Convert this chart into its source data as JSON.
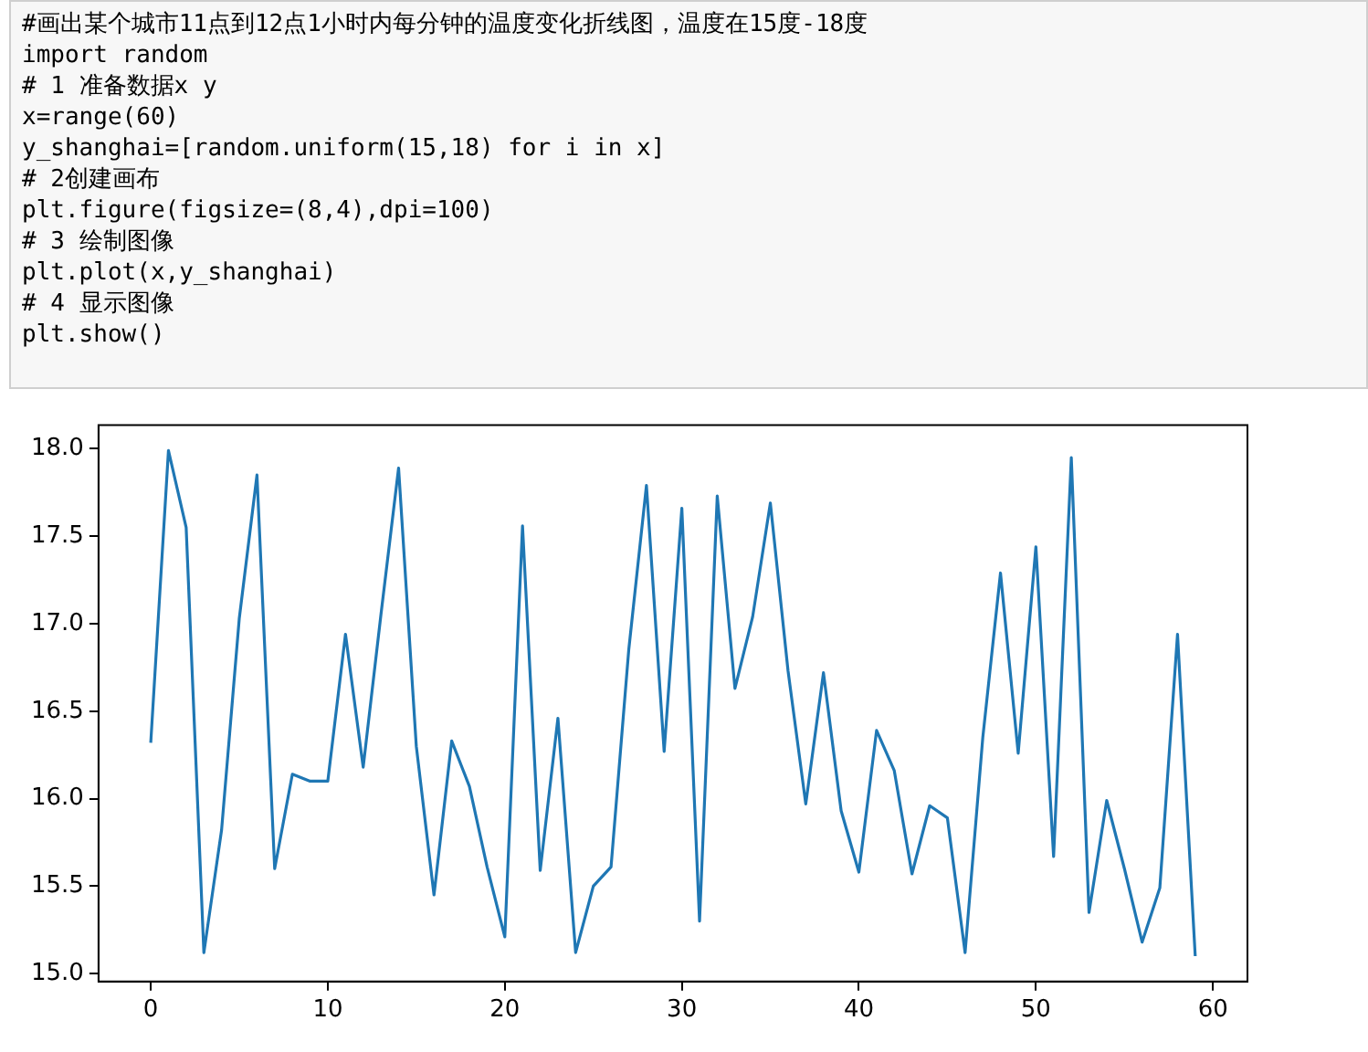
{
  "chart_data": {
    "type": "line",
    "annotations": [
      "#画出某个城市11点到12点1小时内每分钟的温度变化折线图，温度在15度-18度",
      "import random",
      "# 1 准备数据x y",
      "x=range(60)",
      "y_shanghai=[random.uniform(15,18) for i in x]",
      "# 2创建画布",
      "plt.figure(figsize=(8,4),dpi=100)",
      "# 3 绘制图像",
      "plt.plot(x,y_shanghai)",
      "# 4 显示图像",
      "plt.show()"
    ],
    "x": [
      0,
      1,
      2,
      3,
      4,
      5,
      6,
      7,
      8,
      9,
      10,
      11,
      12,
      13,
      14,
      15,
      16,
      17,
      18,
      19,
      20,
      21,
      22,
      23,
      24,
      25,
      26,
      27,
      28,
      29,
      30,
      31,
      32,
      33,
      34,
      35,
      36,
      37,
      38,
      39,
      40,
      41,
      42,
      43,
      44,
      45,
      46,
      47,
      48,
      49,
      50,
      51,
      52,
      53,
      54,
      55,
      56,
      57,
      58,
      59
    ],
    "series": [
      {
        "color": "#1f77b4",
        "values": [
          16.32,
          17.99,
          17.55,
          15.12,
          15.82,
          17.03,
          17.85,
          15.6,
          16.14,
          16.1,
          16.1,
          16.94,
          16.18,
          17.05,
          17.89,
          16.3,
          15.45,
          16.33,
          16.07,
          15.61,
          15.21,
          17.56,
          15.59,
          16.46,
          15.12,
          15.5,
          15.61,
          16.85,
          17.79,
          16.27,
          17.66,
          15.3,
          17.73,
          16.63,
          17.04,
          17.69,
          16.73,
          15.97,
          16.72,
          15.93,
          15.58,
          16.39,
          16.16,
          15.57,
          15.96,
          15.89,
          15.12,
          16.35,
          17.29,
          16.26,
          17.44,
          15.67,
          17.95,
          15.35,
          15.99,
          15.6,
          15.18,
          15.49,
          16.94,
          15.1
        ]
      }
    ],
    "xlim": [
      -2.95,
      61.95
    ],
    "xticks": [
      0,
      10,
      20,
      30,
      40,
      50,
      60
    ],
    "ylim": [
      14.955,
      18.135
    ],
    "yticks": [
      {
        "value": 15,
        "label": "15.0"
      },
      {
        "value": 15.5,
        "label": "15.5"
      },
      {
        "value": 16,
        "label": "16.0"
      },
      {
        "value": 16.5,
        "label": "16.5"
      },
      {
        "value": 17,
        "label": "17.0"
      },
      {
        "value": 17.5,
        "label": "17.5"
      },
      {
        "value": 18,
        "label": "18.0"
      }
    ],
    "grid": false,
    "legend": false,
    "marker": "none",
    "line_style": "solid"
  }
}
